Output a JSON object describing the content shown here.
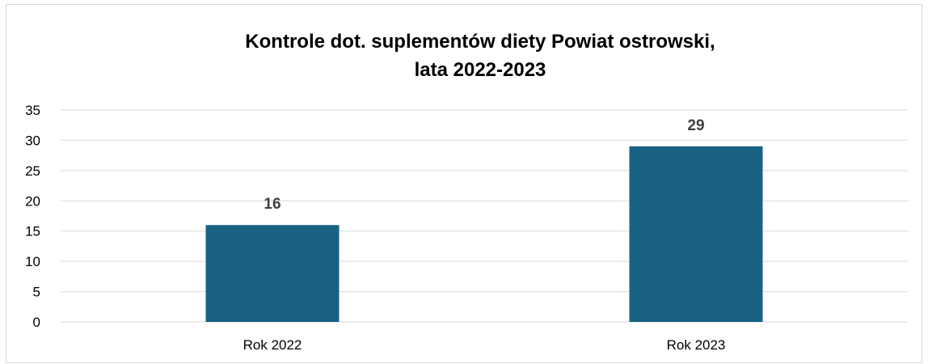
{
  "chart_data": {
    "type": "bar",
    "title_lines": [
      "Kontrole dot. suplementów diety Powiat ostrowski,",
      "lata 2022-2023"
    ],
    "categories": [
      "Rok 2022",
      "Rok 2023"
    ],
    "values": [
      16,
      29
    ],
    "data_labels": [
      "16",
      "29"
    ],
    "xlabel": "",
    "ylabel": "",
    "ylim": [
      0,
      35
    ],
    "yticks": [
      "0",
      "5",
      "10",
      "15",
      "20",
      "25",
      "30",
      "35"
    ],
    "grid": true,
    "legend": "none",
    "colors": {
      "bar": "#1a6184",
      "grid": "#d9d9d9",
      "tick_text": "#000000",
      "data_label": "#404040"
    }
  }
}
